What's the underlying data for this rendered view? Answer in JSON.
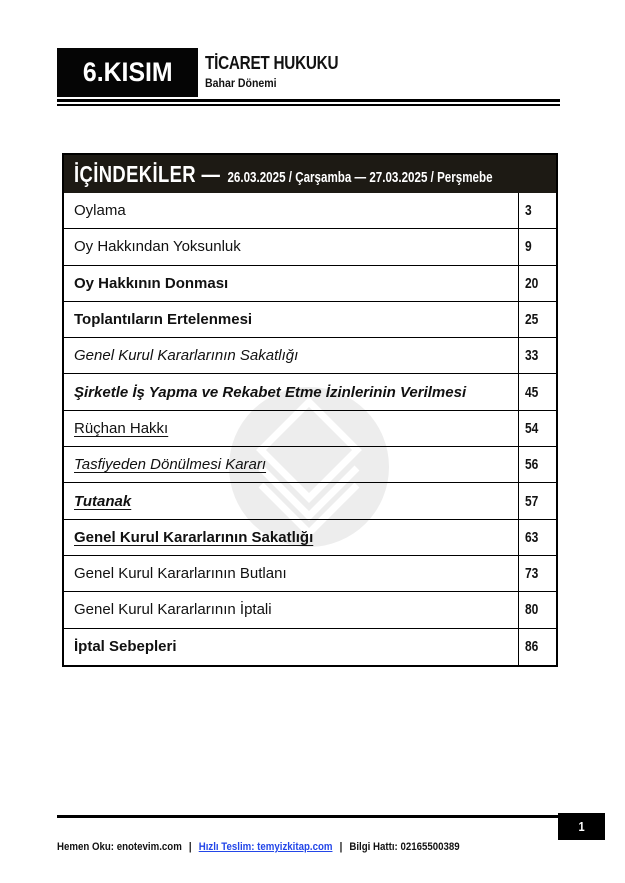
{
  "header": {
    "part_label": "6.KISIM",
    "course_title": "TİCARET HUKUKU",
    "term": "Bahar Dönemi"
  },
  "toc": {
    "title_prefix": "İÇİNDEKİLER —",
    "date_text": "26.03.2025 / Çarşamba — 27.03.2025 / Perşmebe",
    "rows": [
      {
        "label": "Oylama",
        "page": "3",
        "style": ""
      },
      {
        "label": "Oy Hakkından Yoksunluk",
        "page": "9",
        "style": ""
      },
      {
        "label": "Oy Hakkının Donması",
        "page": "20",
        "style": "bold"
      },
      {
        "label": "Toplantıların Ertelenmesi",
        "page": "25",
        "style": "bold"
      },
      {
        "label": "Genel Kurul Kararlarının Sakatlığı",
        "page": "33",
        "style": "italic"
      },
      {
        "label": "Şirketle İş Yapma ve Rekabet Etme İzinlerinin Verilmesi",
        "page": "45",
        "style": "bold italic"
      },
      {
        "label": "Rüçhan Hakkı",
        "page": "54",
        "style": "underline"
      },
      {
        "label": "Tasfiyeden Dönülmesi Kararı",
        "page": "56",
        "style": "italic underline"
      },
      {
        "label": "Tutanak",
        "page": "57",
        "style": "bold italic underline"
      },
      {
        "label": "Genel Kurul Kararlarının Sakatlığı",
        "page": "63",
        "style": "bold underline"
      },
      {
        "label": "Genel Kurul Kararlarının Butlanı",
        "page": "73",
        "style": ""
      },
      {
        "label": "Genel Kurul Kararlarının İptali",
        "page": "80",
        "style": ""
      },
      {
        "label": "İptal Sebepleri",
        "page": "86",
        "style": "bold"
      }
    ]
  },
  "footer": {
    "page_number": "1",
    "read_label": "Hemen Oku: enotevim.com",
    "separator": "|",
    "link_label": "Hızlı Teslim: temyizkitap.com",
    "separator2": "|",
    "info_label": "Bilgi Hattı: 02165500389"
  },
  "watermark": {
    "icon": "diamond-chevron-logo-watermark"
  },
  "colors": {
    "toc-header-bg": "#1D1A14",
    "link-blue": "#2346E8",
    "watermark-gray": "#EDEDED",
    "ink": "#121212"
  }
}
